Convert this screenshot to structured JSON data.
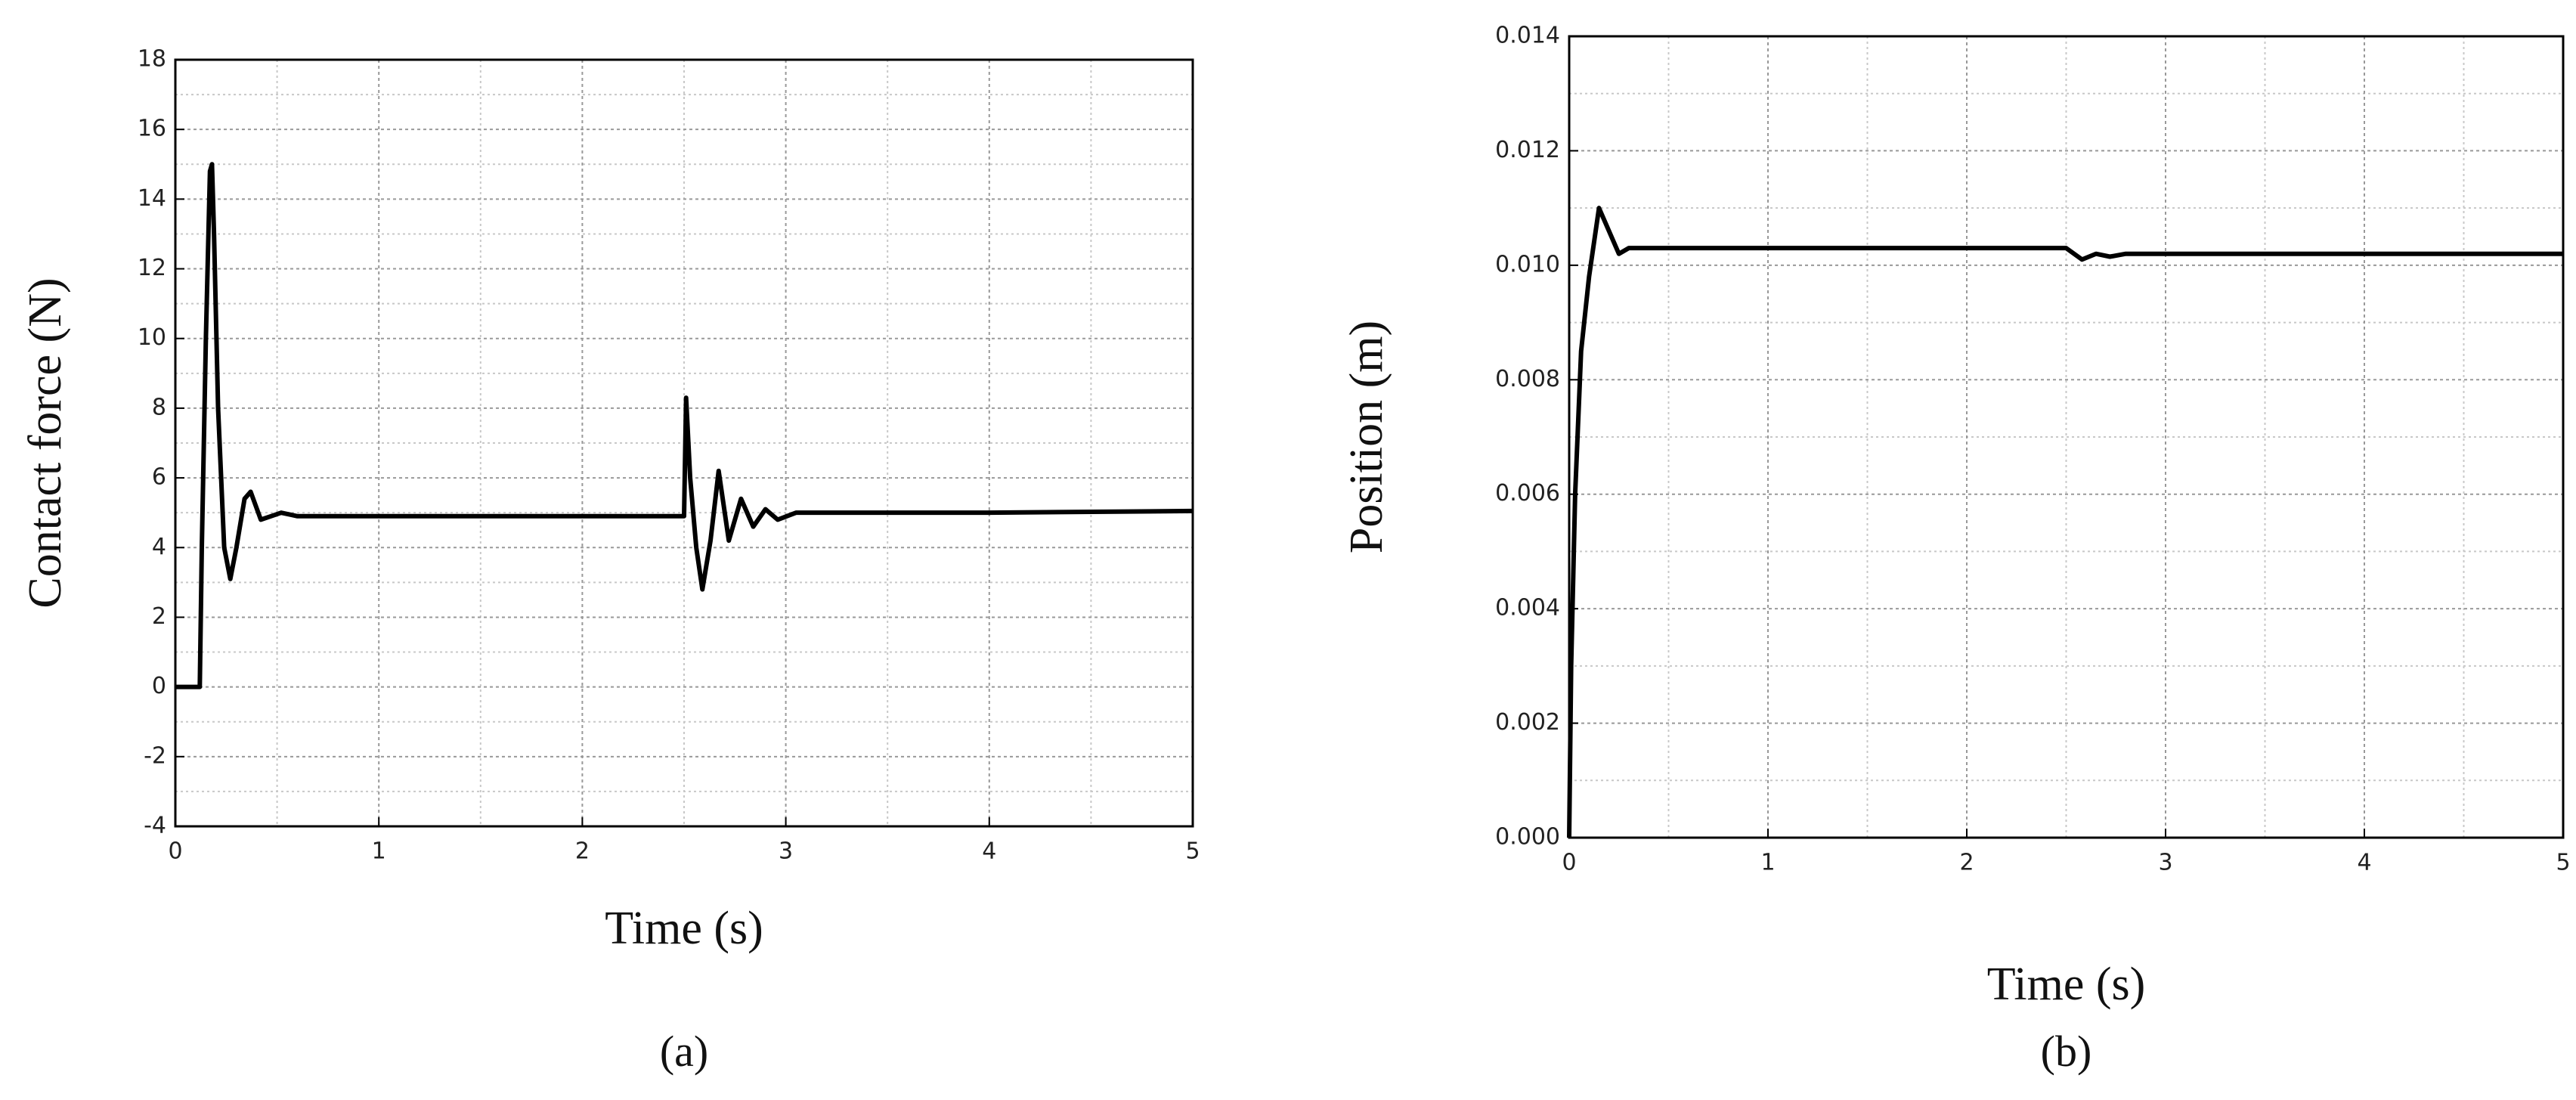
{
  "chart_data": [
    {
      "type": "line",
      "label": "(a)",
      "x_label": "Time (s)",
      "y_label": "Contact force (N)",
      "xlim": [
        0,
        5
      ],
      "xticks": [
        0,
        1,
        2,
        3,
        4,
        5
      ],
      "ylim": [
        -4,
        18
      ],
      "yticks": [
        -4,
        -2,
        0,
        2,
        4,
        6,
        8,
        10,
        12,
        14,
        16,
        18
      ],
      "grid": true,
      "series": [
        {
          "color": "#000000",
          "x": [
            0,
            0.12,
            0.13,
            0.15,
            0.17,
            0.18,
            0.19,
            0.21,
            0.24,
            0.27,
            0.3,
            0.34,
            0.37,
            0.42,
            0.47,
            0.52,
            0.6,
            1.0,
            2.0,
            2.5,
            2.51,
            2.53,
            2.56,
            2.59,
            2.63,
            2.67,
            2.72,
            2.78,
            2.84,
            2.9,
            2.96,
            3.05,
            3.5,
            4.0,
            5.0
          ],
          "values": [
            0,
            0,
            4,
            10,
            14.8,
            15,
            13,
            8,
            4,
            3.1,
            4,
            5.4,
            5.6,
            4.8,
            4.9,
            5.0,
            4.9,
            4.9,
            4.9,
            4.9,
            8.3,
            6,
            4,
            2.8,
            4.2,
            6.2,
            4.2,
            5.4,
            4.6,
            5.1,
            4.8,
            5.0,
            5.0,
            5.0,
            5.05
          ]
        }
      ]
    },
    {
      "type": "line",
      "label": "(b)",
      "x_label": "Time (s)",
      "y_label": "Position (m)",
      "xlim": [
        0,
        5
      ],
      "xticks": [
        0,
        1,
        2,
        3,
        4,
        5
      ],
      "ylim": [
        0,
        0.014
      ],
      "yticks": [
        {
          "value": 0,
          "label": "0.000"
        },
        0.002,
        0.004,
        0.006,
        0.008,
        {
          "value": 0.01,
          "label": "0.010"
        },
        0.012,
        0.014
      ],
      "grid": true,
      "series": [
        {
          "color": "#000000",
          "x": [
            0,
            0.01,
            0.03,
            0.06,
            0.1,
            0.15,
            0.2,
            0.25,
            0.3,
            0.5,
            1,
            2,
            2.5,
            2.58,
            2.65,
            2.72,
            2.8,
            3,
            5
          ],
          "values": [
            0,
            0.003,
            0.006,
            0.0085,
            0.0098,
            0.011,
            0.0106,
            0.0102,
            0.0103,
            0.0103,
            0.0103,
            0.0103,
            0.0103,
            0.0101,
            0.0102,
            0.01015,
            0.0102,
            0.0102,
            0.0102
          ]
        }
      ]
    }
  ]
}
